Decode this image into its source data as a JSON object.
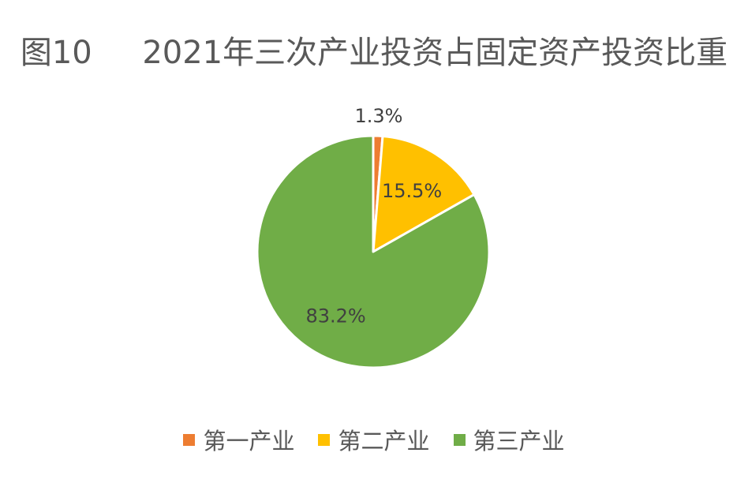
{
  "chart_data": {
    "type": "pie",
    "title": "图10     2021年三次产业投资占固定资产投资比重",
    "categories": [
      "第一产业",
      "第二产业",
      "第三产业"
    ],
    "values": [
      1.3,
      15.5,
      83.2
    ],
    "labels": [
      "1.3%",
      "15.5%",
      "83.2%"
    ],
    "colors": [
      "#ED7D31",
      "#FFC000",
      "#70AD47"
    ],
    "legend_position": "bottom"
  }
}
